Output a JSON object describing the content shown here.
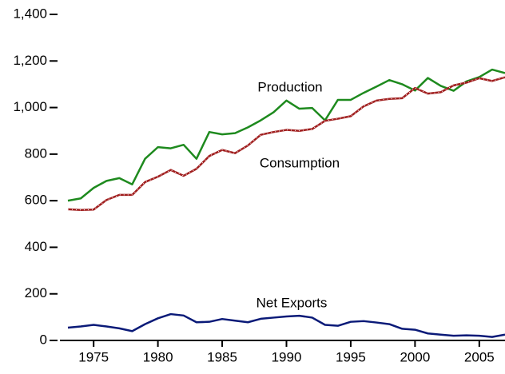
{
  "chart_data": {
    "type": "line",
    "x": [
      1973,
      1974,
      1975,
      1976,
      1977,
      1978,
      1979,
      1980,
      1981,
      1982,
      1983,
      1984,
      1985,
      1986,
      1987,
      1988,
      1989,
      1990,
      1991,
      1992,
      1993,
      1994,
      1995,
      1996,
      1997,
      1998,
      1999,
      2000,
      2001,
      2002,
      2003,
      2004,
      2005,
      2006,
      2007
    ],
    "series": [
      {
        "name": "Production",
        "color": "#1e8a1e",
        "values": [
          600,
          610,
          655,
          685,
          697,
          670,
          780,
          830,
          825,
          840,
          780,
          895,
          885,
          890,
          915,
          945,
          980,
          1030,
          995,
          998,
          945,
          1033,
          1033,
          1063,
          1090,
          1118,
          1100,
          1073,
          1127,
          1093,
          1072,
          1112,
          1131,
          1163,
          1148
        ]
      },
      {
        "name": "Consumption",
        "color": "#a01e1e",
        "values": [
          563,
          560,
          562,
          603,
          625,
          625,
          680,
          703,
          732,
          707,
          737,
          792,
          818,
          804,
          837,
          883,
          895,
          904,
          900,
          908,
          943,
          952,
          963,
          1005,
          1030,
          1037,
          1040,
          1084,
          1060,
          1066,
          1095,
          1107,
          1126,
          1114,
          1130
        ]
      },
      {
        "name": "Net Exports",
        "color": "#0a1a78",
        "values": [
          55,
          60,
          67,
          60,
          52,
          40,
          70,
          95,
          113,
          107,
          78,
          80,
          92,
          85,
          78,
          93,
          98,
          103,
          106,
          98,
          67,
          63,
          80,
          83,
          77,
          70,
          50,
          46,
          30,
          25,
          20,
          22,
          20,
          15,
          25
        ]
      }
    ],
    "xlim": [
      1973,
      2007
    ],
    "xticks": [
      1975,
      1980,
      1985,
      1990,
      1995,
      2000,
      2005
    ],
    "ylim": [
      0,
      1400
    ],
    "yticks": [
      0,
      200,
      400,
      600,
      800,
      {
        "value": 1000,
        "label": "1,000"
      },
      {
        "value": 1200,
        "label": "1,200"
      },
      {
        "value": 1400,
        "label": "1,400"
      }
    ]
  }
}
